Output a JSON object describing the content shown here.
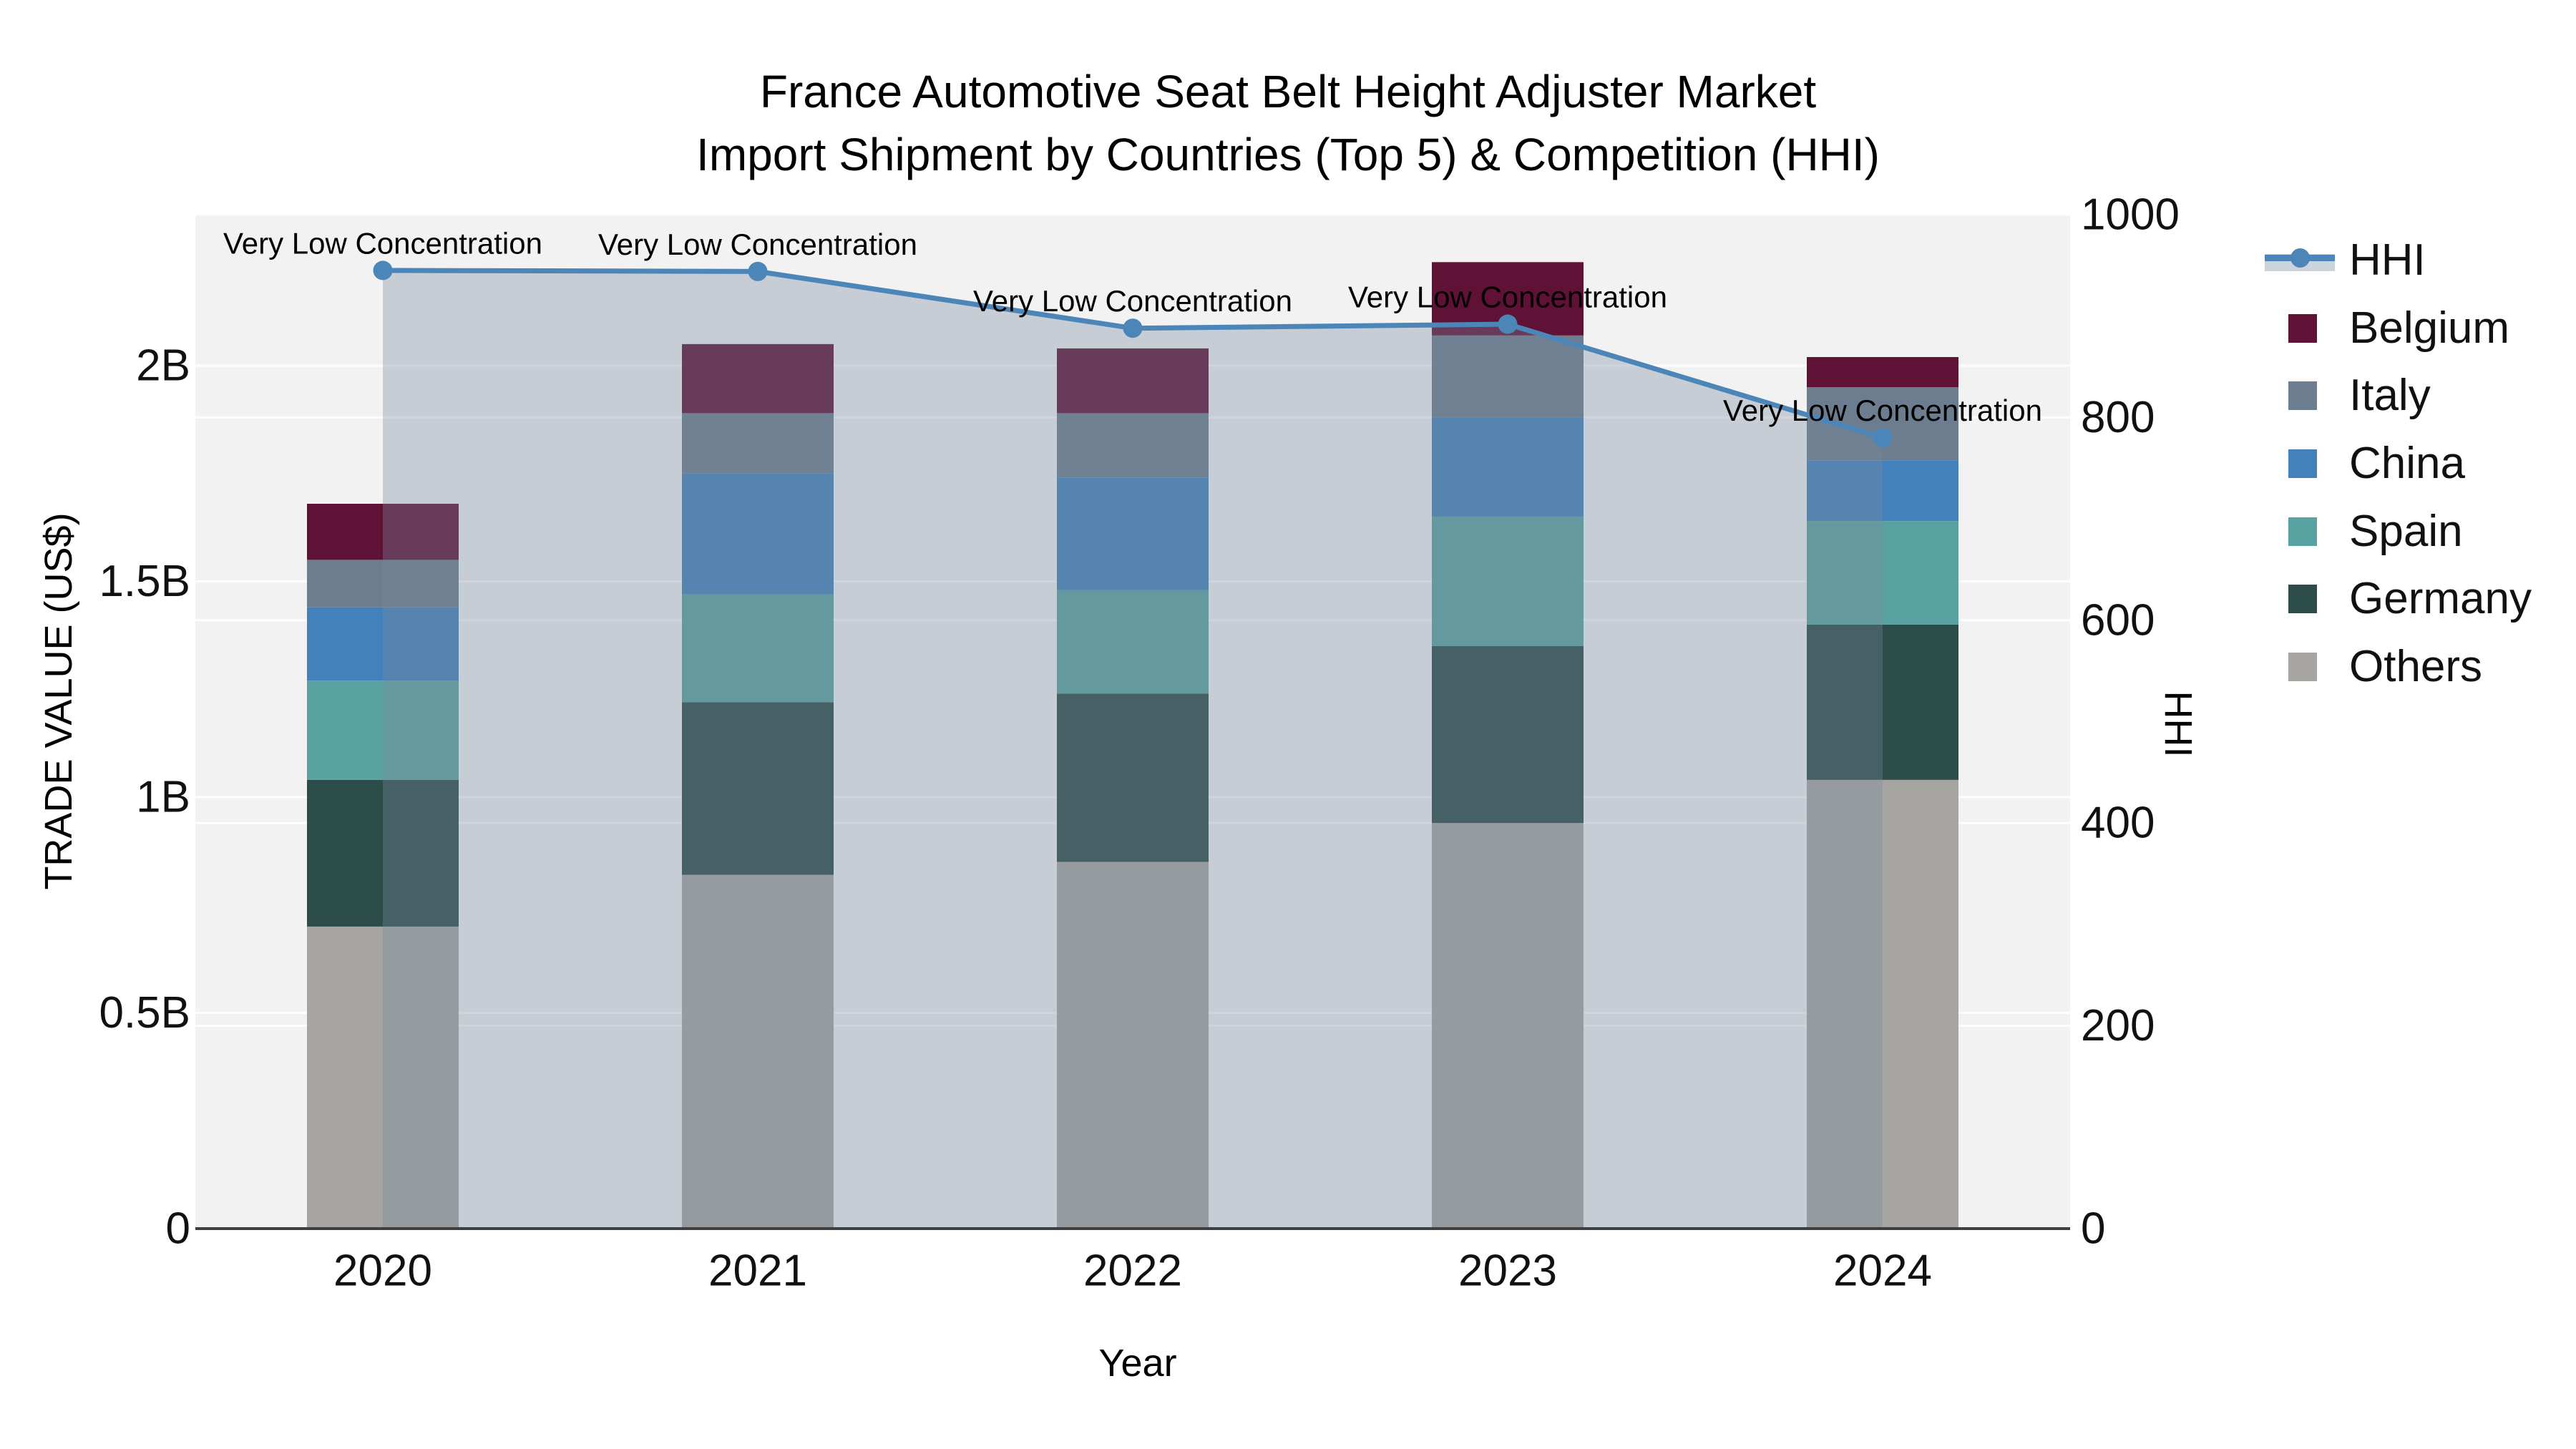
{
  "chart_data": {
    "type": "stacked-bar+line",
    "title": "France Automotive Seat Belt Height Adjuster Market",
    "subtitle": "Import Shipment by Countries (Top 5) & Competition (HHI)",
    "xlabel": "Year",
    "ylabel": "TRADE VALUE (US$)",
    "y2label": "HHI",
    "categories": [
      "2020",
      "2021",
      "2022",
      "2023",
      "2024"
    ],
    "value_unit": "billion US$",
    "series": [
      {
        "name": "Belgium",
        "color": "#5f1136",
        "values": [
          0.13,
          0.16,
          0.15,
          0.17,
          0.07
        ]
      },
      {
        "name": "Italy",
        "color": "#6b7d8e",
        "values": [
          0.11,
          0.14,
          0.15,
          0.19,
          0.17
        ]
      },
      {
        "name": "China",
        "color": "#4381bd",
        "values": [
          0.17,
          0.28,
          0.26,
          0.23,
          0.14
        ]
      },
      {
        "name": "Spain",
        "color": "#58a2a2",
        "values": [
          0.23,
          0.25,
          0.24,
          0.3,
          0.24
        ]
      },
      {
        "name": "Germany",
        "color": "#2c4c4a",
        "values": [
          0.34,
          0.4,
          0.39,
          0.41,
          0.36
        ]
      },
      {
        "name": "Others",
        "color": "#a7a5a1",
        "values": [
          0.7,
          0.82,
          0.85,
          0.94,
          1.04
        ]
      }
    ],
    "stack_order": [
      "Others",
      "Germany",
      "Spain",
      "China",
      "Italy",
      "Belgium"
    ],
    "line_series": {
      "name": "HHI",
      "color": "#4c86b8",
      "area_fill": "rgba(120,138,155,0.35)",
      "axis": "right",
      "values": [
        945,
        944,
        888,
        892,
        780
      ]
    },
    "point_annotations": [
      "Very Low Concentration",
      "Very Low Concentration",
      "Very Low Concentration",
      "Very Low Concentration",
      "Very Low Concentration"
    ],
    "y_left": {
      "min": 0,
      "max": 2.35,
      "ticks": [
        {
          "v": 0,
          "label": "0"
        },
        {
          "v": 0.5,
          "label": "0.5B"
        },
        {
          "v": 1,
          "label": "1B"
        },
        {
          "v": 1.5,
          "label": "1.5B"
        },
        {
          "v": 2,
          "label": "2B"
        }
      ]
    },
    "y_right": {
      "min": 0,
      "max": 1000,
      "ticks": [
        {
          "v": 0,
          "label": "0"
        },
        {
          "v": 200,
          "label": "200"
        },
        {
          "v": 400,
          "label": "400"
        },
        {
          "v": 600,
          "label": "600"
        },
        {
          "v": 800,
          "label": "800"
        },
        {
          "v": 1000,
          "label": "1000"
        }
      ]
    }
  },
  "legend": {
    "items": [
      {
        "label": "HHI",
        "type": "line",
        "color": "#4c86b8"
      },
      {
        "label": "Belgium",
        "type": "swatch",
        "color": "#5f1136"
      },
      {
        "label": "Italy",
        "type": "swatch",
        "color": "#6b7d8e"
      },
      {
        "label": "China",
        "type": "swatch",
        "color": "#4381bd"
      },
      {
        "label": "Spain",
        "type": "swatch",
        "color": "#58a2a2"
      },
      {
        "label": "Germany",
        "type": "swatch",
        "color": "#2c4c4a"
      },
      {
        "label": "Others",
        "type": "swatch",
        "color": "#a7a5a1"
      }
    ]
  },
  "colors": {
    "plot_bg": "#f2f2f3",
    "grid": "#ffffff",
    "axis_line": "#3f3f3f",
    "text": "#111111"
  }
}
